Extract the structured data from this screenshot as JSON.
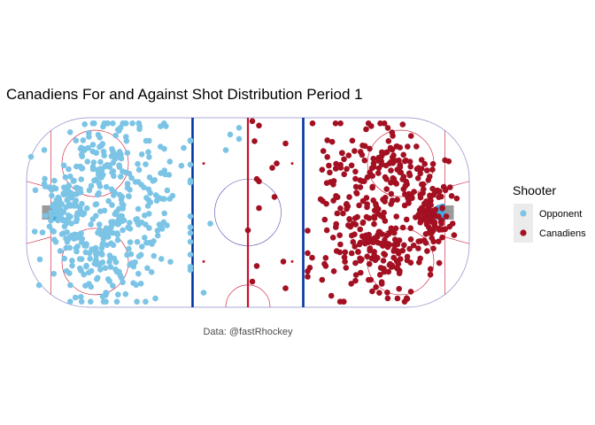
{
  "chart_data": {
    "type": "scatter",
    "title": "Canadiens For and Against Shot Distribution Period 1",
    "caption": "Data: @fastRhockey",
    "xlabel": "",
    "ylabel": "",
    "xlim": [
      -100,
      100
    ],
    "ylim": [
      -42.5,
      42.5
    ],
    "grid": false,
    "legend": {
      "title": "Shooter",
      "placement": "right"
    },
    "series": [
      {
        "name": "Opponent",
        "color": "#7cc4e6",
        "clusters": [
          {
            "cx": -84,
            "cy": 0,
            "sx": 4,
            "sy": 9,
            "n": 90
          },
          {
            "cx": -68,
            "cy": 20,
            "sx": 9,
            "sy": 9,
            "n": 80
          },
          {
            "cx": -68,
            "cy": -20,
            "sx": 9,
            "sy": 9,
            "n": 80
          },
          {
            "cx": -60,
            "cy": 0,
            "sx": 12,
            "sy": 20,
            "n": 130
          },
          {
            "cx": -45,
            "cy": 0,
            "sx": 10,
            "sy": 24,
            "n": 70
          },
          {
            "cx": -22,
            "cy": 0,
            "sx": 10,
            "sy": 24,
            "n": 12
          }
        ],
        "extra_points": [
          {
            "x": -98,
            "y": 25
          },
          {
            "x": -96,
            "y": 10
          },
          {
            "x": -94,
            "y": -21
          },
          {
            "x": -8,
            "y": 35
          },
          {
            "x": -4,
            "y": 38
          },
          {
            "x": -4,
            "y": 33
          },
          {
            "x": -10,
            "y": 28
          },
          {
            "x": -17,
            "y": -5
          },
          {
            "x": -29,
            "y": 29
          },
          {
            "x": -20,
            "y": -36
          }
        ]
      },
      {
        "name": "Canadiens",
        "color": "#a31022",
        "clusters": [
          {
            "cx": 82,
            "cy": 0,
            "sx": 5,
            "sy": 8,
            "n": 95
          },
          {
            "cx": 66,
            "cy": 21,
            "sx": 10,
            "sy": 10,
            "n": 80
          },
          {
            "cx": 66,
            "cy": -18,
            "sx": 10,
            "sy": 10,
            "n": 80
          },
          {
            "cx": 57,
            "cy": 0,
            "sx": 12,
            "sy": 19,
            "n": 110
          },
          {
            "cx": 44,
            "cy": 0,
            "sx": 10,
            "sy": 24,
            "n": 75
          }
        ],
        "extra_points": [
          {
            "x": 2,
            "y": 41
          },
          {
            "x": 5,
            "y": 39
          },
          {
            "x": 3,
            "y": 32
          },
          {
            "x": 4,
            "y": 15
          },
          {
            "x": 5,
            "y": 2
          },
          {
            "x": 0,
            "y": -8
          },
          {
            "x": 4,
            "y": -24
          },
          {
            "x": 11,
            "y": 20
          },
          {
            "x": 13,
            "y": 22
          },
          {
            "x": 12,
            "y": 7
          },
          {
            "x": 17,
            "y": 31
          },
          {
            "x": 16,
            "y": -22
          },
          {
            "x": 17,
            "y": -34
          },
          {
            "x": 2,
            "y": -31
          },
          {
            "x": 5,
            "y": 14
          }
        ]
      }
    ]
  }
}
